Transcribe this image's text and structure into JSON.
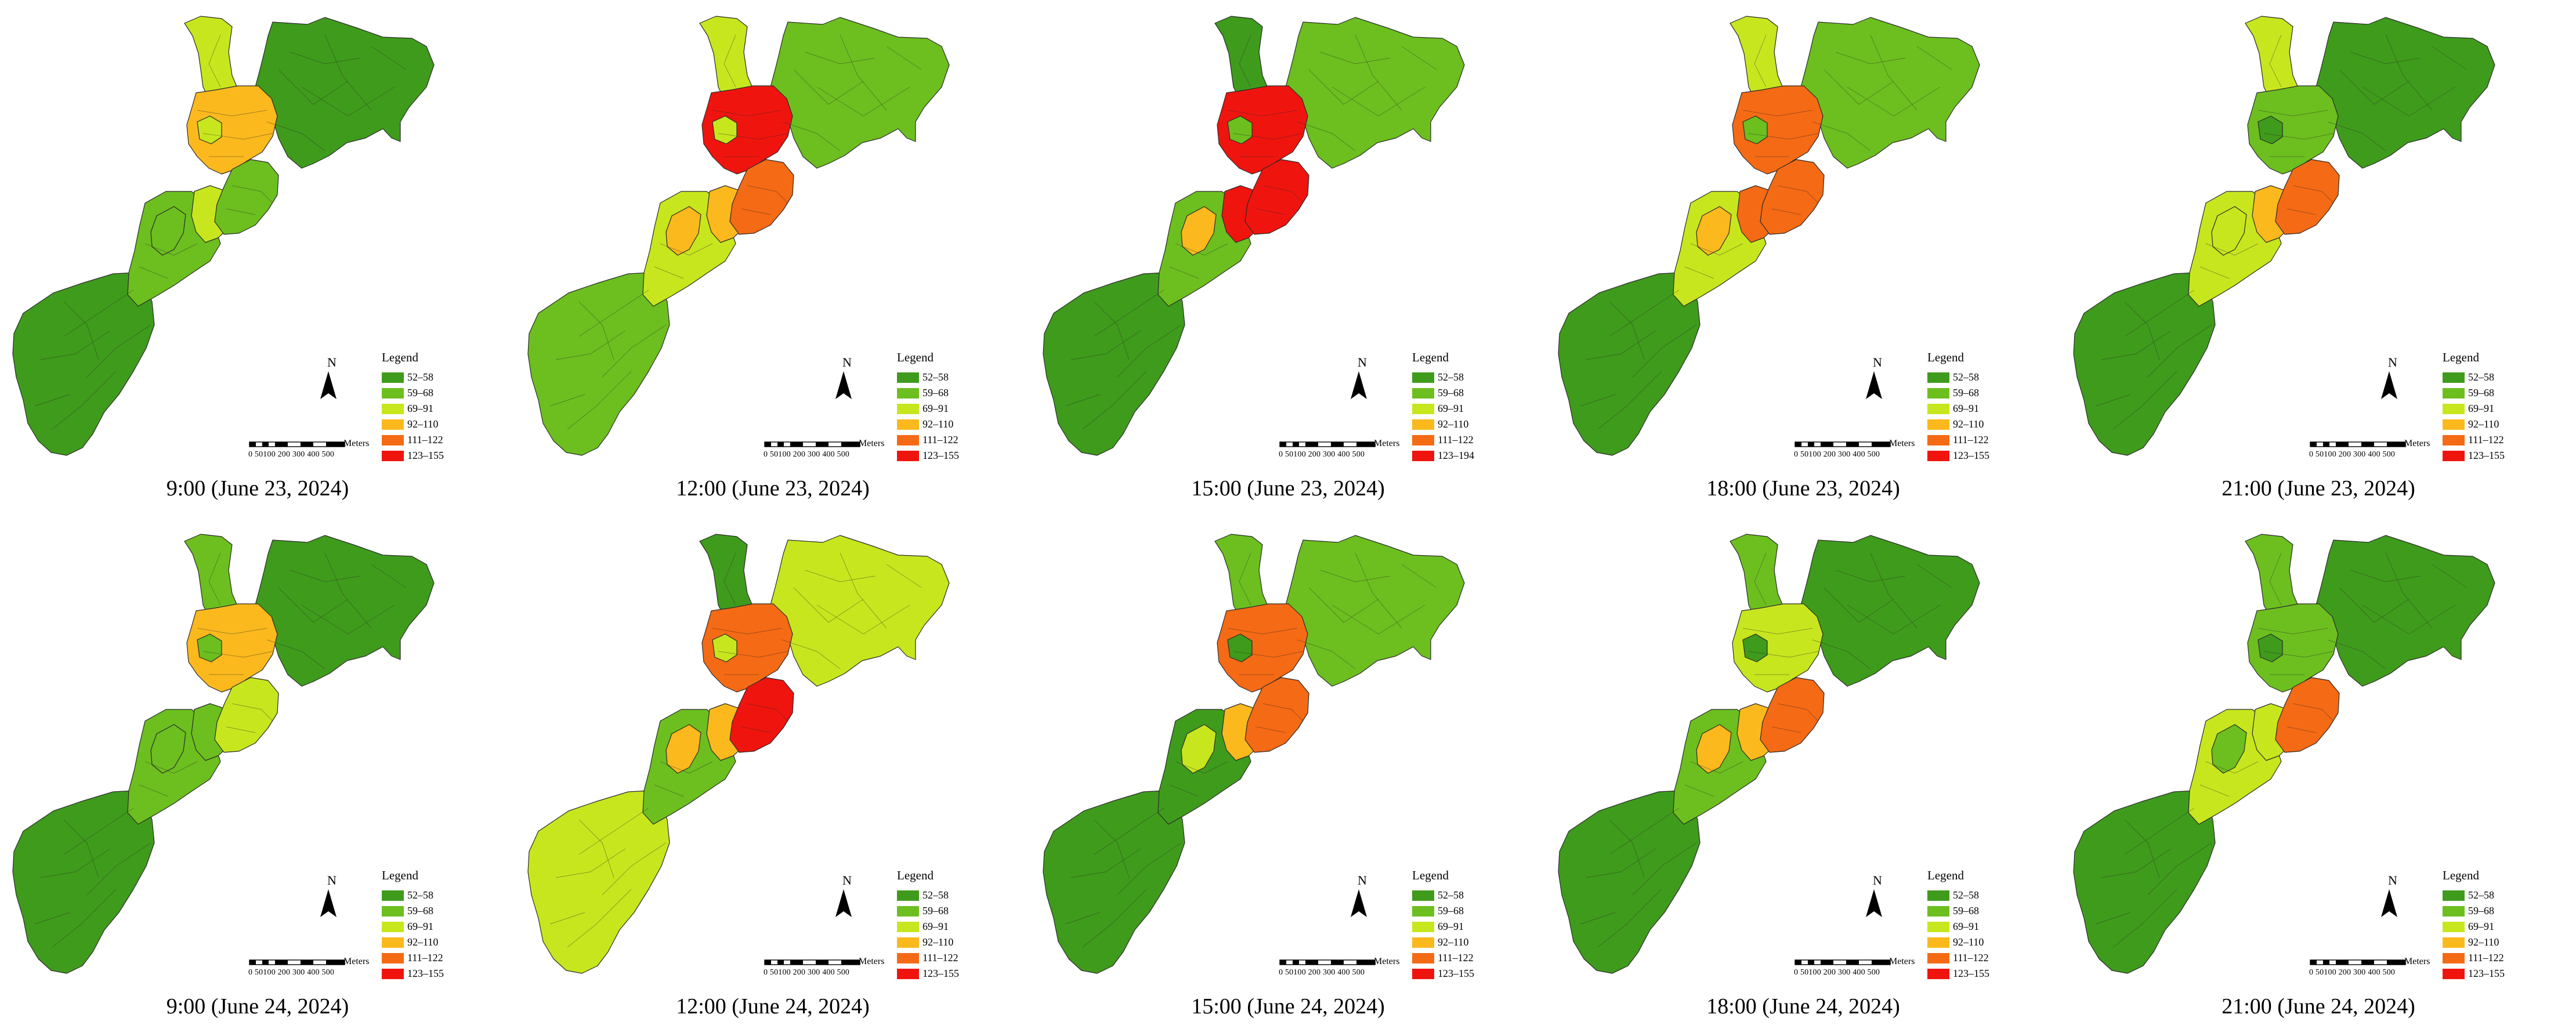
{
  "legend": {
    "title": "Legend",
    "classes_default": [
      "52–58",
      "59–68",
      "69–91",
      "92–110",
      "111–122",
      "123–155"
    ],
    "classes_alt": [
      "52–58",
      "59–68",
      "69–91",
      "92–110",
      "111–122",
      "123–194"
    ],
    "colors": [
      "#3f9b1c",
      "#6cbf1f",
      "#c8e61e",
      "#fbb91d",
      "#f56a14",
      "#f0140f"
    ]
  },
  "north_label": "N",
  "scale": {
    "ticks": "0 50100 200 300 400 500",
    "unit": "Meters"
  },
  "panels": [
    {
      "caption": "9:00 (June 23, 2024)",
      "classes": "default",
      "zones": {
        "northArm": 2,
        "hub": 3,
        "center": 1,
        "shoulder": 2,
        "midWest": 1,
        "southWest": 0,
        "eastPlate": 0,
        "blob": 1,
        "tip": 2
      }
    },
    {
      "caption": "12:00 (June 23, 2024)",
      "classes": "default",
      "zones": {
        "northArm": 2,
        "hub": 5,
        "center": 4,
        "shoulder": 3,
        "midWest": 2,
        "southWest": 1,
        "eastPlate": 1,
        "blob": 3,
        "tip": 2
      }
    },
    {
      "caption": "15:00 (June 23, 2024)",
      "classes": "alt",
      "zones": {
        "northArm": 0,
        "hub": 5,
        "center": 5,
        "shoulder": 5,
        "midWest": 1,
        "southWest": 0,
        "eastPlate": 1,
        "blob": 3,
        "tip": 1
      }
    },
    {
      "caption": "18:00 (June 23, 2024)",
      "classes": "default",
      "zones": {
        "northArm": 2,
        "hub": 4,
        "center": 4,
        "shoulder": 4,
        "midWest": 2,
        "southWest": 0,
        "eastPlate": 1,
        "blob": 3,
        "tip": 1
      }
    },
    {
      "caption": "21:00 (June 23, 2024)",
      "classes": "default",
      "zones": {
        "northArm": 2,
        "hub": 1,
        "center": 4,
        "shoulder": 3,
        "midWest": 2,
        "southWest": 0,
        "eastPlate": 0,
        "blob": 2,
        "tip": 0
      }
    },
    {
      "caption": "9:00 (June 24, 2024)",
      "classes": "default",
      "zones": {
        "northArm": 1,
        "hub": 3,
        "center": 2,
        "shoulder": 1,
        "midWest": 1,
        "southWest": 0,
        "eastPlate": 0,
        "blob": 1,
        "tip": 1
      }
    },
    {
      "caption": "12:00 (June 24, 2024)",
      "classes": "default",
      "zones": {
        "northArm": 0,
        "hub": 4,
        "center": 5,
        "shoulder": 3,
        "midWest": 1,
        "southWest": 2,
        "eastPlate": 2,
        "blob": 3,
        "tip": 2
      }
    },
    {
      "caption": "15:00 (June 24, 2024)",
      "classes": "default",
      "zones": {
        "northArm": 1,
        "hub": 4,
        "center": 4,
        "shoulder": 3,
        "midWest": 0,
        "southWest": 0,
        "eastPlate": 1,
        "blob": 2,
        "tip": 0
      }
    },
    {
      "caption": "18:00 (June 24, 2024)",
      "classes": "default",
      "zones": {
        "northArm": 1,
        "hub": 2,
        "center": 4,
        "shoulder": 3,
        "midWest": 1,
        "southWest": 0,
        "eastPlate": 0,
        "blob": 3,
        "tip": 0
      }
    },
    {
      "caption": "21:00 (June 24, 2024)",
      "classes": "default",
      "zones": {
        "northArm": 1,
        "hub": 1,
        "center": 4,
        "shoulder": 2,
        "midWest": 2,
        "southWest": 0,
        "eastPlate": 0,
        "blob": 1,
        "tip": 0
      }
    }
  ]
}
